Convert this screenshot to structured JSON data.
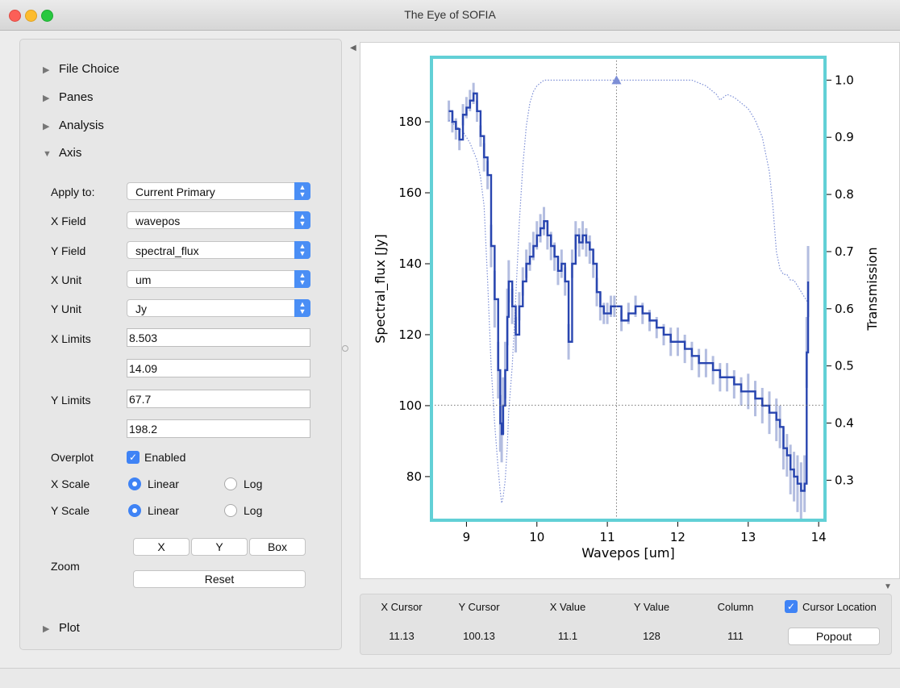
{
  "window": {
    "title": "The Eye of SOFIA"
  },
  "sections": {
    "file_choice": "File Choice",
    "panes": "Panes",
    "analysis": "Analysis",
    "axis": "Axis",
    "plot": "Plot"
  },
  "axis_panel": {
    "apply_to_label": "Apply to:",
    "apply_to_value": "Current Primary",
    "x_field_label": "X Field",
    "x_field_value": "wavepos",
    "y_field_label": "Y Field",
    "y_field_value": "spectral_flux",
    "x_unit_label": "X Unit",
    "x_unit_value": "um",
    "y_unit_label": "Y Unit",
    "y_unit_value": "Jy",
    "x_limits_label": "X Limits",
    "x_limit_min": "8.503",
    "x_limit_max": "14.09",
    "y_limits_label": "Y Limits",
    "y_limit_min": "67.7",
    "y_limit_max": "198.2",
    "overplot_label": "Overplot",
    "overplot_option": "Enabled",
    "x_scale_label": "X Scale",
    "y_scale_label": "Y Scale",
    "linear": "Linear",
    "log": "Log",
    "zoom_label": "Zoom",
    "zoom_x": "X",
    "zoom_y": "Y",
    "zoom_box": "Box",
    "zoom_reset": "Reset"
  },
  "cursor_panel": {
    "headers": [
      "X Cursor",
      "Y Cursor",
      "X Value",
      "Y Value",
      "Column"
    ],
    "values": [
      "11.13",
      "100.13",
      "11.1",
      "128",
      "111"
    ],
    "cursor_location_label": "Cursor Location",
    "popout_label": "Popout"
  },
  "colors": {
    "flux": "#2946b0",
    "flux_err": "#b3bde0",
    "transmission": "#7d8fd6",
    "frame": "#62d0d6"
  },
  "chart_data": {
    "type": "line",
    "xlabel": "Wavepos [um]",
    "ylabel": "Spectral_flux [Jy]",
    "y2label": "Transmission",
    "xlim": [
      8.503,
      14.09
    ],
    "ylim": [
      67.7,
      198.2
    ],
    "y2lim": [
      0.23,
      1.04
    ],
    "xticks": [
      "9",
      "10",
      "11",
      "12",
      "13",
      "14"
    ],
    "yticks": [
      "80",
      "100",
      "120",
      "140",
      "160",
      "180"
    ],
    "y2ticks": [
      "0.3",
      "0.4",
      "0.5",
      "0.6",
      "0.7",
      "0.8",
      "0.9",
      "1.0"
    ],
    "cursor": {
      "x": 11.13,
      "y": 100.13
    },
    "series": [
      {
        "x": [
          8.75,
          8.8,
          8.85,
          8.9,
          8.95,
          9.0,
          9.05,
          9.1,
          9.15,
          9.2,
          9.25,
          9.3,
          9.35,
          9.4,
          9.45,
          9.48,
          9.5,
          9.52,
          9.55,
          9.58,
          9.6,
          9.65,
          9.7,
          9.75,
          9.8,
          9.85,
          9.9,
          9.95,
          10.0,
          10.05,
          10.1,
          10.15,
          10.2,
          10.25,
          10.3,
          10.35,
          10.4,
          10.45,
          10.5,
          10.55,
          10.6,
          10.65,
          10.7,
          10.75,
          10.8,
          10.85,
          10.9,
          10.95,
          11.0,
          11.05,
          11.1,
          11.2,
          11.3,
          11.4,
          11.5,
          11.6,
          11.7,
          11.8,
          11.9,
          12.0,
          12.1,
          12.2,
          12.3,
          12.4,
          12.5,
          12.6,
          12.7,
          12.8,
          12.9,
          13.0,
          13.1,
          13.2,
          13.3,
          13.4,
          13.45,
          13.5,
          13.55,
          13.6,
          13.65,
          13.7,
          13.75,
          13.8,
          13.83,
          13.85
        ],
        "y": [
          183,
          180,
          178,
          175,
          182,
          184,
          186,
          188,
          183,
          176,
          170,
          165,
          145,
          130,
          110,
          95,
          92,
          100,
          110,
          125,
          135,
          128,
          120,
          128,
          135,
          140,
          142,
          145,
          148,
          150,
          152,
          148,
          145,
          142,
          138,
          140,
          135,
          118,
          140,
          148,
          146,
          148,
          146,
          144,
          140,
          132,
          128,
          126,
          126,
          128,
          128,
          124,
          126,
          128,
          126,
          124,
          122,
          120,
          118,
          118,
          116,
          114,
          112,
          112,
          110,
          108,
          108,
          106,
          104,
          104,
          102,
          100,
          98,
          96,
          94,
          88,
          86,
          82,
          80,
          78,
          76,
          78,
          115,
          135
        ],
        "err": [
          3,
          3,
          3,
          3,
          3,
          3,
          3,
          3,
          3,
          3,
          4,
          4,
          6,
          8,
          8,
          8,
          8,
          8,
          8,
          8,
          6,
          5,
          5,
          4,
          4,
          4,
          4,
          4,
          4,
          4,
          4,
          4,
          4,
          4,
          4,
          4,
          4,
          5,
          4,
          4,
          4,
          4,
          4,
          4,
          4,
          4,
          4,
          3,
          3,
          3,
          3,
          3,
          3,
          3,
          3,
          3,
          3,
          3,
          4,
          4,
          4,
          4,
          4,
          4,
          4,
          4,
          4,
          4,
          4,
          5,
          5,
          5,
          6,
          6,
          6,
          6,
          6,
          7,
          7,
          8,
          8,
          8,
          10,
          10
        ]
      },
      {
        "x": [
          8.75,
          8.85,
          8.95,
          9.05,
          9.15,
          9.2,
          9.25,
          9.3,
          9.35,
          9.4,
          9.45,
          9.48,
          9.5,
          9.52,
          9.55,
          9.58,
          9.6,
          9.65,
          9.7,
          9.75,
          9.8,
          9.85,
          9.9,
          9.95,
          10.0,
          10.05,
          10.1,
          10.15,
          10.2,
          10.25,
          10.3,
          10.4,
          10.5,
          10.6,
          10.7,
          10.8,
          10.9,
          11.0,
          11.1,
          11.2,
          11.4,
          11.6,
          11.8,
          12.0,
          12.2,
          12.4,
          12.5,
          12.55,
          12.6,
          12.65,
          12.7,
          12.8,
          12.9,
          13.0,
          13.1,
          13.2,
          13.3,
          13.35,
          13.4,
          13.45,
          13.5,
          13.55,
          13.6,
          13.65,
          13.7,
          13.75,
          13.8,
          13.85
        ],
        "y": [
          0.93,
          0.92,
          0.91,
          0.89,
          0.86,
          0.83,
          0.78,
          0.65,
          0.5,
          0.4,
          0.32,
          0.28,
          0.26,
          0.27,
          0.3,
          0.36,
          0.42,
          0.5,
          0.62,
          0.75,
          0.85,
          0.92,
          0.96,
          0.98,
          0.99,
          0.995,
          1.0,
          1.0,
          1.0,
          1.0,
          1.0,
          1.0,
          1.0,
          1.0,
          1.0,
          1.0,
          1.0,
          1.0,
          1.0,
          1.0,
          1.0,
          1.0,
          1.0,
          1.0,
          1.0,
          0.99,
          0.98,
          0.975,
          0.965,
          0.97,
          0.975,
          0.97,
          0.96,
          0.95,
          0.93,
          0.9,
          0.84,
          0.78,
          0.7,
          0.67,
          0.66,
          0.66,
          0.65,
          0.65,
          0.64,
          0.63,
          0.62,
          0.61
        ]
      }
    ]
  }
}
